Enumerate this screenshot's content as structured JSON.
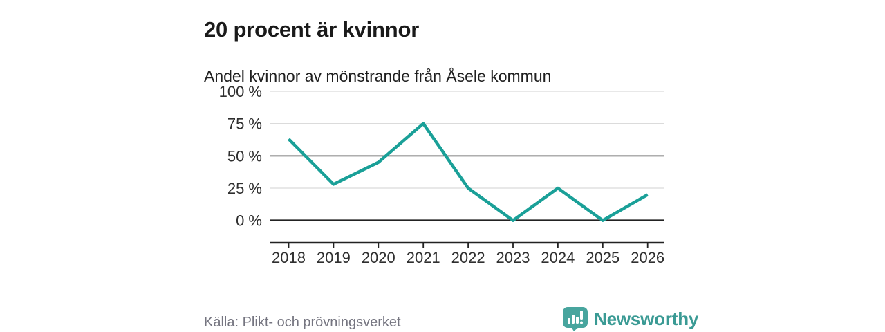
{
  "header": {
    "title": "20 procent är kvinnor",
    "subtitle": "Andel kvinnor av mönstrande från Åsele kommun"
  },
  "chart_data": {
    "type": "line",
    "title": "20 procent är kvinnor",
    "subtitle": "Andel kvinnor av mönstrande från Åsele kommun",
    "categories": [
      "2018",
      "2019",
      "2020",
      "2021",
      "2022",
      "2023",
      "2024",
      "2025",
      "2026"
    ],
    "series": [
      {
        "name": "Andel kvinnor av mönstrande",
        "values": [
          63,
          28,
          45,
          75,
          25,
          0,
          25,
          0,
          20
        ]
      }
    ],
    "units": "%",
    "ylim": [
      0,
      100
    ],
    "yticks": [
      0,
      25,
      50,
      75,
      100
    ],
    "ytick_labels": [
      "0 %",
      "25 %",
      "50 %",
      "75 %",
      "100 %"
    ],
    "grid": true,
    "emphasized_gridlines": [
      50
    ],
    "baseline_gridline": 0,
    "legend": "none",
    "line_color": "#1aa098"
  },
  "footer": {
    "source": "Källa: Plikt- och prövningsverket",
    "brand": "Newsworthy",
    "brand_color": "#3a9a94",
    "icon": "newsworthy-logo-icon",
    "icon_color": "#48a59e"
  }
}
